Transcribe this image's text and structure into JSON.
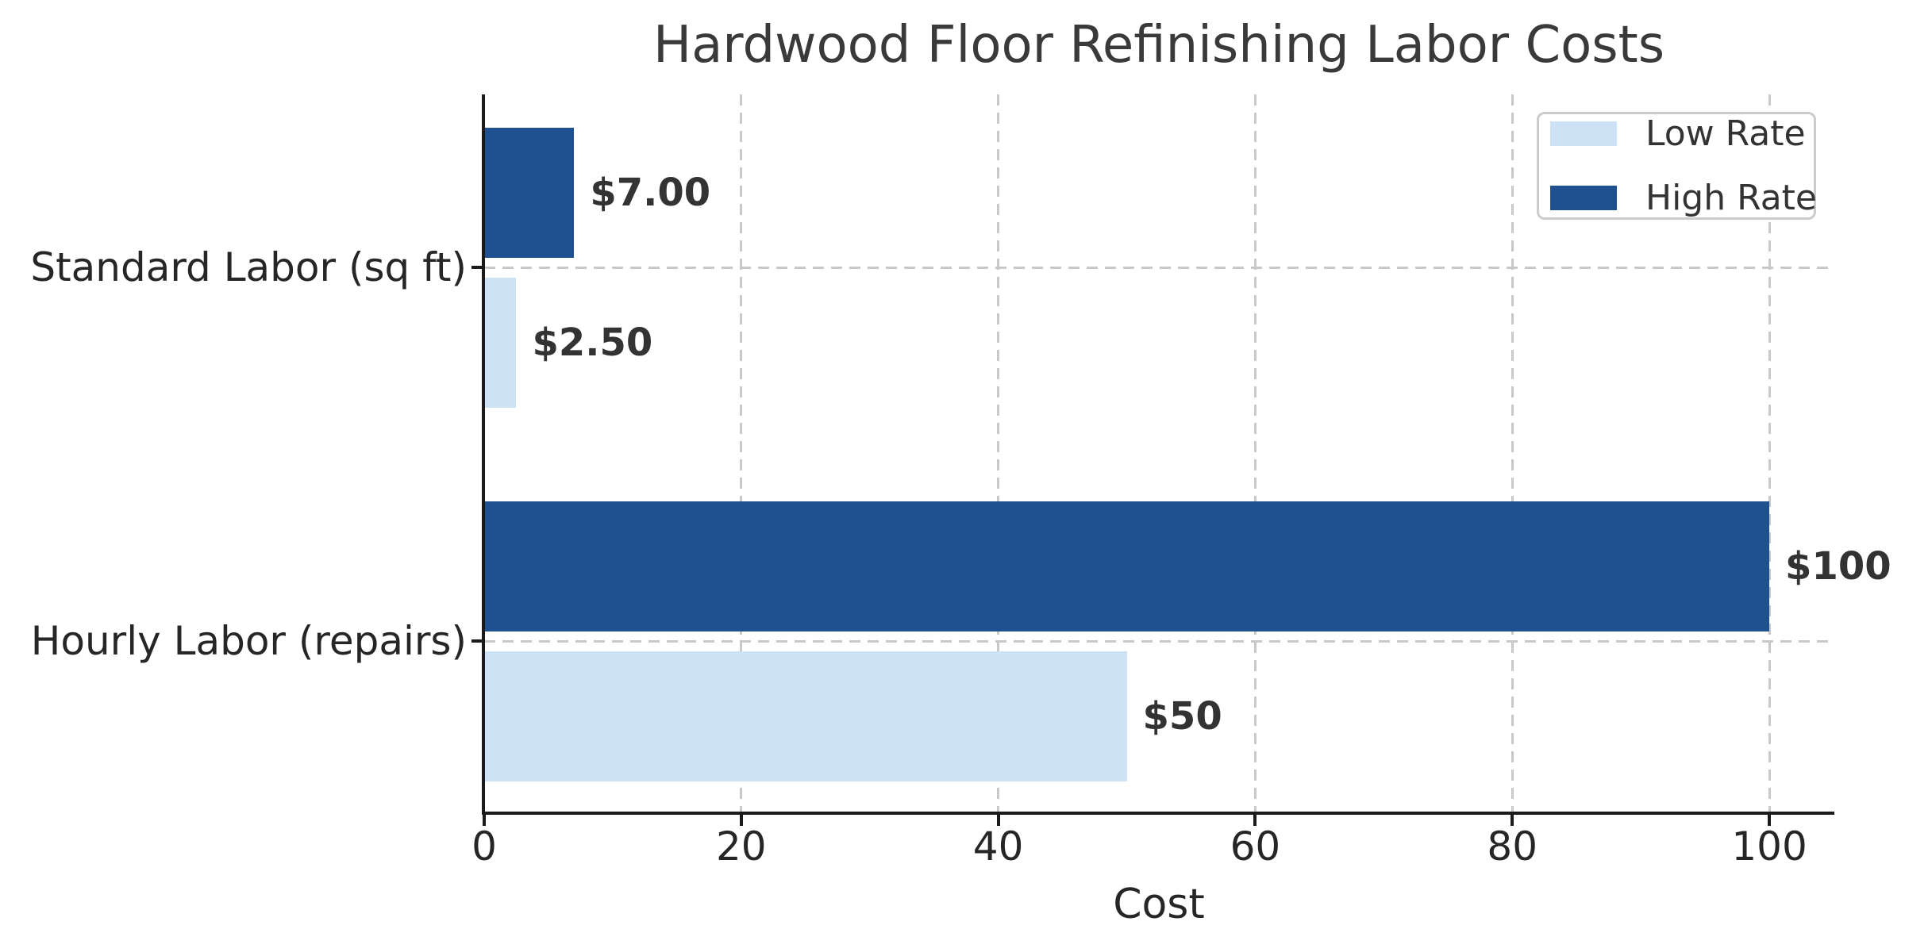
{
  "chart_data": {
    "type": "bar",
    "orientation": "horizontal",
    "title": "Hardwood Floor Refinishing Labor Costs",
    "xlabel": "Cost",
    "ylabel": "",
    "categories": [
      "Standard Labor (sq ft)",
      "Hourly Labor (repairs)"
    ],
    "series": [
      {
        "name": "Low Rate",
        "color": "#CDE2F5",
        "values": [
          2.5,
          50
        ],
        "labels": [
          "$2.50",
          "$50"
        ]
      },
      {
        "name": "High Rate",
        "color": "#1F5190",
        "values": [
          7,
          100
        ],
        "labels": [
          "$7.00",
          "$100"
        ]
      }
    ],
    "xticks": [
      0,
      20,
      40,
      60,
      80,
      100
    ],
    "xlim": [
      0,
      105
    ],
    "grid": "dashed-x-and-category-lines",
    "legend_position": "upper-right",
    "colors": {
      "low_rate": "#CDE2F5",
      "high_rate": "#1F5190",
      "grid": "#c9c9c9",
      "spine": "#1a1a1a",
      "text": "#262626",
      "title": "#3a3a3a",
      "bar_label": "#333333"
    }
  }
}
